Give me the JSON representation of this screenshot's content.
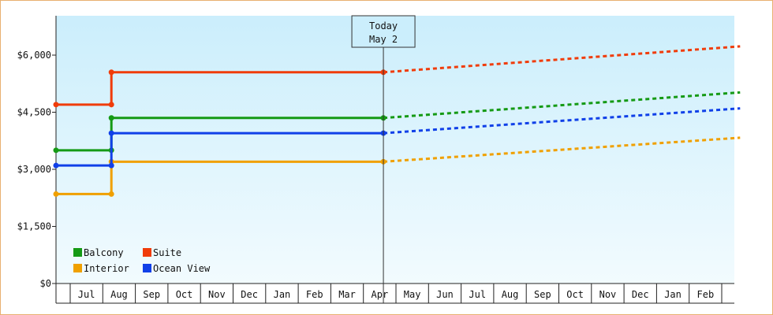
{
  "chart_data": {
    "type": "line",
    "title": "",
    "xlabel": "",
    "ylabel": "",
    "ylim": [
      0,
      7000
    ],
    "yticks": [
      {
        "value": 0,
        "label": "$0"
      },
      {
        "value": 1500,
        "label": "$1,500"
      },
      {
        "value": 3000,
        "label": "$3,000"
      },
      {
        "value": 4500,
        "label": "$4,500"
      },
      {
        "value": 6000,
        "label": "$6,000"
      }
    ],
    "x_months": [
      "Jul",
      "Aug",
      "Sep",
      "Oct",
      "Nov",
      "Dec",
      "Jan",
      "Feb",
      "Mar",
      "Apr",
      "May",
      "Jun",
      "Jul",
      "Aug",
      "Sep",
      "Oct",
      "Nov",
      "Dec",
      "Jan",
      "Feb"
    ],
    "x_range_months": [
      0,
      21
    ],
    "today": {
      "line1": "Today",
      "line2": "May 2",
      "x_month": 10.05
    },
    "grid": false,
    "legend_position": "bottom-left",
    "series": [
      {
        "name": "Balcony",
        "color": "#159a15",
        "points": [
          [
            0,
            3500
          ],
          [
            1.7,
            3500
          ],
          [
            1.7,
            4350
          ],
          [
            10.05,
            4350
          ]
        ],
        "projection": [
          [
            10.05,
            4350
          ],
          [
            21,
            5020
          ]
        ]
      },
      {
        "name": "Suite",
        "color": "#f03c0a",
        "points": [
          [
            0,
            4700
          ],
          [
            1.7,
            4700
          ],
          [
            1.7,
            5550
          ],
          [
            10.05,
            5550
          ]
        ],
        "projection": [
          [
            10.05,
            5550
          ],
          [
            21,
            6230
          ]
        ]
      },
      {
        "name": "Interior",
        "color": "#f0a000",
        "points": [
          [
            0,
            2350
          ],
          [
            1.7,
            2350
          ],
          [
            1.7,
            3200
          ],
          [
            10.05,
            3200
          ]
        ],
        "projection": [
          [
            10.05,
            3200
          ],
          [
            21,
            3830
          ]
        ]
      },
      {
        "name": "Ocean View",
        "color": "#1040e8",
        "points": [
          [
            0,
            3100
          ],
          [
            1.7,
            3100
          ],
          [
            1.7,
            3950
          ],
          [
            10.05,
            3950
          ]
        ],
        "projection": [
          [
            10.05,
            3950
          ],
          [
            21,
            4600
          ]
        ]
      }
    ]
  }
}
